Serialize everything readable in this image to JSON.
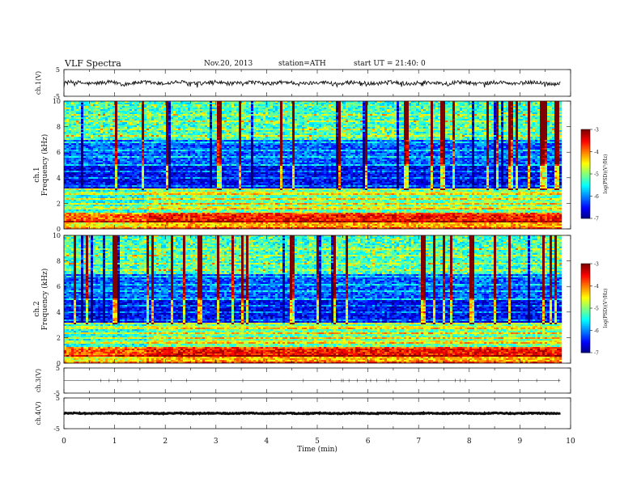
{
  "header": {
    "title": "VLF  Spectra",
    "date": "Nov.20, 2013",
    "station": "station=ATH",
    "start": "start  UT  =   21:40: 0"
  },
  "chart_data": [
    {
      "type": "line",
      "panel": "ch1-waveform",
      "ylabel": "ch.1(V)",
      "ylim": [
        -5,
        5
      ],
      "yticks": [
        "5",
        "-5"
      ],
      "level": 0,
      "noise_amplitude": 0.7,
      "xlim": [
        0,
        10
      ],
      "x_end": 9.8
    },
    {
      "type": "heatmap",
      "panel": "ch1-spectrogram",
      "ylabel": "ch.1\nFrequency  (kHz)",
      "ylabel_top": "ch.1",
      "ylabel_bottom": "Frequency  (kHz)",
      "ylim": [
        0,
        10
      ],
      "yticks": [
        "0",
        "2",
        "4",
        "6",
        "8",
        "10"
      ],
      "xlim": [
        0,
        10
      ],
      "x_end": 9.8,
      "step_change_min": 1.6,
      "colorbar": {
        "label": "log(PSD)(V²/Hz)",
        "ticks": [
          "-3",
          "-4",
          "-5",
          "-6",
          "-7"
        ],
        "range": [
          -7,
          -3
        ]
      }
    },
    {
      "type": "heatmap",
      "panel": "ch2-spectrogram",
      "ylabel": "ch.2\nFrequency  (kHz)",
      "ylabel_top": "ch.2",
      "ylabel_bottom": "Frequency  (kHz)",
      "ylim": [
        0,
        10
      ],
      "yticks": [
        "0",
        "2",
        "4",
        "6",
        "8",
        "10"
      ],
      "xlim": [
        0,
        10
      ],
      "x_end": 9.8,
      "step_change_min": 1.6,
      "colorbar": {
        "label": "log(PSD)(V²/Hz)",
        "ticks": [
          "-3",
          "-4",
          "-5",
          "-6",
          "-7"
        ],
        "range": [
          -7,
          -3
        ]
      }
    },
    {
      "type": "line",
      "panel": "ch3-waveform",
      "ylabel": "ch.3(V)",
      "ylim": [
        -5,
        5
      ],
      "yticks": [
        "5",
        "-5"
      ],
      "level": 0,
      "noise_amplitude": 0.05,
      "xlim": [
        0,
        10
      ],
      "x_end": 9.8
    },
    {
      "type": "line",
      "panel": "ch4-waveform",
      "ylabel": "ch.4(V)",
      "ylim": [
        -5,
        5
      ],
      "yticks": [
        "5",
        "-5"
      ],
      "level": 0,
      "noise_amplitude": 0.15,
      "xlim": [
        0,
        10
      ],
      "x_end": 9.8
    }
  ],
  "xaxis": {
    "label": "Time  (min)",
    "ticks": [
      "0",
      "1",
      "2",
      "3",
      "4",
      "5",
      "6",
      "7",
      "8",
      "9",
      "10"
    ]
  },
  "colors": {
    "waveform": "#111111",
    "jet": [
      "#00007f",
      "#0000ff",
      "#007fff",
      "#00ffff",
      "#7fff7f",
      "#ffff00",
      "#ff7f00",
      "#ff0000",
      "#7f0000"
    ]
  }
}
